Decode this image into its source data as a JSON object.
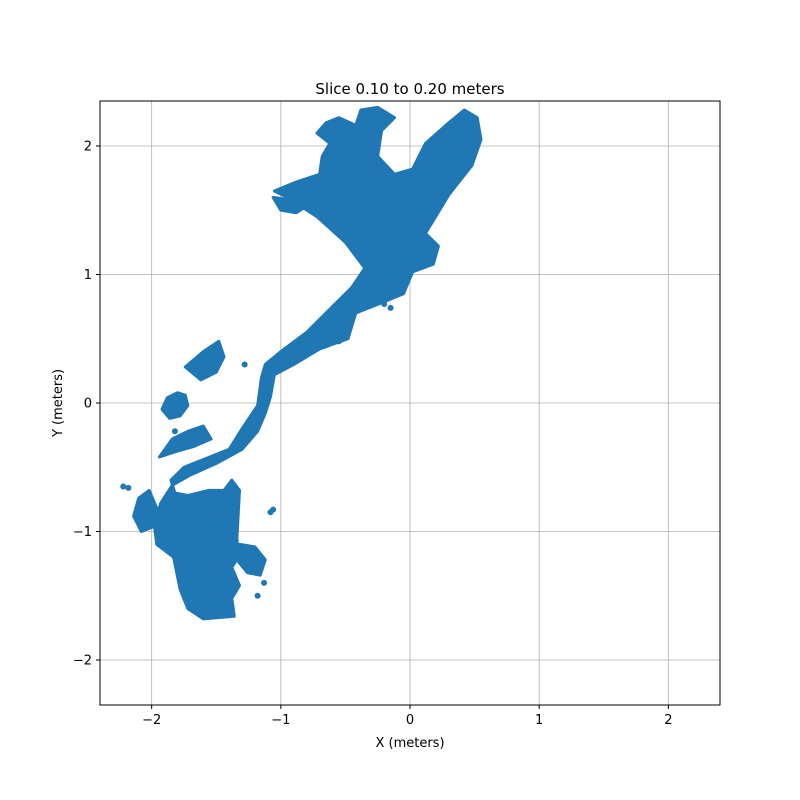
{
  "chart_data": {
    "type": "scatter",
    "title": "Slice 0.10 to 0.20 meters",
    "xlabel": "X (meters)",
    "ylabel": "Y (meters)",
    "xlim": [
      -2.4,
      2.4
    ],
    "ylim": [
      -2.35,
      2.35
    ],
    "xticks": [
      -2,
      -1,
      0,
      1,
      2
    ],
    "yticks": [
      -2,
      -1,
      0,
      1,
      2
    ],
    "xtick_labels": [
      "−2",
      "−1",
      "0",
      "1",
      "2"
    ],
    "ytick_labels": [
      "−2",
      "−1",
      "0",
      "1",
      "2"
    ],
    "grid": true,
    "color": "#1f77b4",
    "regions": [
      {
        "points": [
          [
            -1.6,
            -1.68
          ],
          [
            -1.36,
            -1.66
          ],
          [
            -1.38,
            -1.52
          ],
          [
            -1.32,
            -1.42
          ],
          [
            -1.38,
            -1.28
          ],
          [
            -1.33,
            -1.2
          ],
          [
            -1.34,
            -1.05
          ],
          [
            -1.32,
            -0.68
          ],
          [
            -1.38,
            -0.6
          ],
          [
            -1.44,
            -0.68
          ],
          [
            -1.56,
            -0.68
          ],
          [
            -1.72,
            -0.72
          ],
          [
            -1.82,
            -0.7
          ],
          [
            -1.85,
            -0.6
          ],
          [
            -1.75,
            -0.5
          ],
          [
            -1.55,
            -0.42
          ],
          [
            -1.4,
            -0.36
          ],
          [
            -1.3,
            -0.2
          ],
          [
            -1.18,
            -0.02
          ],
          [
            -1.15,
            0.2
          ],
          [
            -1.12,
            0.3
          ],
          [
            -1.0,
            0.4
          ],
          [
            -0.8,
            0.55
          ],
          [
            -0.6,
            0.75
          ],
          [
            -0.45,
            0.9
          ],
          [
            -0.35,
            1.05
          ],
          [
            -0.5,
            1.25
          ],
          [
            -0.72,
            1.45
          ],
          [
            -0.95,
            1.6
          ],
          [
            -1.05,
            1.65
          ],
          [
            -0.88,
            1.72
          ],
          [
            -0.7,
            1.78
          ],
          [
            -0.68,
            1.92
          ],
          [
            -0.62,
            2.02
          ],
          [
            -0.72,
            2.1
          ],
          [
            -0.65,
            2.18
          ],
          [
            -0.55,
            2.22
          ],
          [
            -0.42,
            2.16
          ],
          [
            -0.38,
            2.28
          ],
          [
            -0.25,
            2.3
          ],
          [
            -0.12,
            2.22
          ],
          [
            -0.22,
            2.12
          ],
          [
            -0.25,
            1.92
          ],
          [
            -0.12,
            1.78
          ],
          [
            0.02,
            1.82
          ],
          [
            0.12,
            2.02
          ],
          [
            0.3,
            2.18
          ],
          [
            0.42,
            2.28
          ],
          [
            0.52,
            2.22
          ],
          [
            0.55,
            2.05
          ],
          [
            0.48,
            1.85
          ],
          [
            0.3,
            1.62
          ],
          [
            0.18,
            1.42
          ],
          [
            0.12,
            1.32
          ],
          [
            0.22,
            1.22
          ],
          [
            0.18,
            1.08
          ],
          [
            0.02,
            1.02
          ],
          [
            -0.05,
            0.85
          ],
          [
            -0.22,
            0.78
          ],
          [
            -0.42,
            0.7
          ],
          [
            -0.48,
            0.5
          ],
          [
            -0.7,
            0.42
          ],
          [
            -0.9,
            0.3
          ],
          [
            -1.05,
            0.22
          ],
          [
            -1.08,
            0.05
          ],
          [
            -1.12,
            -0.08
          ],
          [
            -1.18,
            -0.22
          ],
          [
            -1.3,
            -0.36
          ],
          [
            -1.5,
            -0.47
          ],
          [
            -1.7,
            -0.56
          ],
          [
            -1.84,
            -0.64
          ],
          [
            -1.93,
            -0.78
          ],
          [
            -1.98,
            -0.95
          ],
          [
            -1.96,
            -1.1
          ],
          [
            -1.83,
            -1.2
          ],
          [
            -1.78,
            -1.45
          ],
          [
            -1.72,
            -1.6
          ]
        ]
      },
      {
        "points": [
          [
            -1.94,
            -0.42
          ],
          [
            -1.82,
            -0.38
          ],
          [
            -1.68,
            -0.34
          ],
          [
            -1.54,
            -0.28
          ],
          [
            -1.6,
            -0.18
          ],
          [
            -1.72,
            -0.22
          ],
          [
            -1.84,
            -0.28
          ]
        ]
      },
      {
        "points": [
          [
            -1.74,
            0.06
          ],
          [
            -1.72,
            -0.02
          ],
          [
            -1.78,
            -0.1
          ],
          [
            -1.86,
            -0.12
          ],
          [
            -1.92,
            -0.05
          ],
          [
            -1.88,
            0.04
          ],
          [
            -1.8,
            0.08
          ]
        ]
      },
      {
        "points": [
          [
            -2.02,
            -0.68
          ],
          [
            -2.1,
            -0.74
          ],
          [
            -2.14,
            -0.88
          ],
          [
            -2.08,
            -1.0
          ],
          [
            -1.98,
            -0.96
          ],
          [
            -1.96,
            -0.82
          ]
        ]
      },
      {
        "points": [
          [
            -1.32,
            -1.1
          ],
          [
            -1.2,
            -1.12
          ],
          [
            -1.12,
            -1.22
          ],
          [
            -1.16,
            -1.34
          ],
          [
            -1.26,
            -1.32
          ],
          [
            -1.34,
            -1.22
          ]
        ]
      },
      {
        "points": [
          [
            -1.74,
            0.28
          ],
          [
            -1.6,
            0.4
          ],
          [
            -1.48,
            0.48
          ],
          [
            -1.44,
            0.36
          ],
          [
            -1.5,
            0.24
          ],
          [
            -1.62,
            0.18
          ]
        ]
      },
      {
        "points": [
          [
            -1.06,
            1.6
          ],
          [
            -0.92,
            1.58
          ],
          [
            -0.82,
            1.52
          ],
          [
            -0.88,
            1.48
          ],
          [
            -1.0,
            1.5
          ]
        ]
      },
      {
        "points": [
          [
            -0.3,
            1.12
          ],
          [
            -0.22,
            1.02
          ],
          [
            -0.12,
            1.0
          ],
          [
            -0.1,
            1.1
          ],
          [
            -0.2,
            1.18
          ]
        ]
      }
    ],
    "points": [
      [
        -2.22,
        -0.65
      ],
      [
        -2.18,
        -0.66
      ],
      [
        -1.42,
        -0.8
      ],
      [
        -1.06,
        -0.83
      ],
      [
        -1.08,
        -0.85
      ],
      [
        -1.13,
        -1.4
      ],
      [
        -1.18,
        -1.5
      ],
      [
        -0.15,
        0.74
      ],
      [
        -0.2,
        0.77
      ],
      [
        -1.82,
        -0.22
      ],
      [
        -1.28,
        0.3
      ],
      [
        -0.55,
        0.48
      ],
      [
        0.18,
        1.24
      ]
    ]
  }
}
